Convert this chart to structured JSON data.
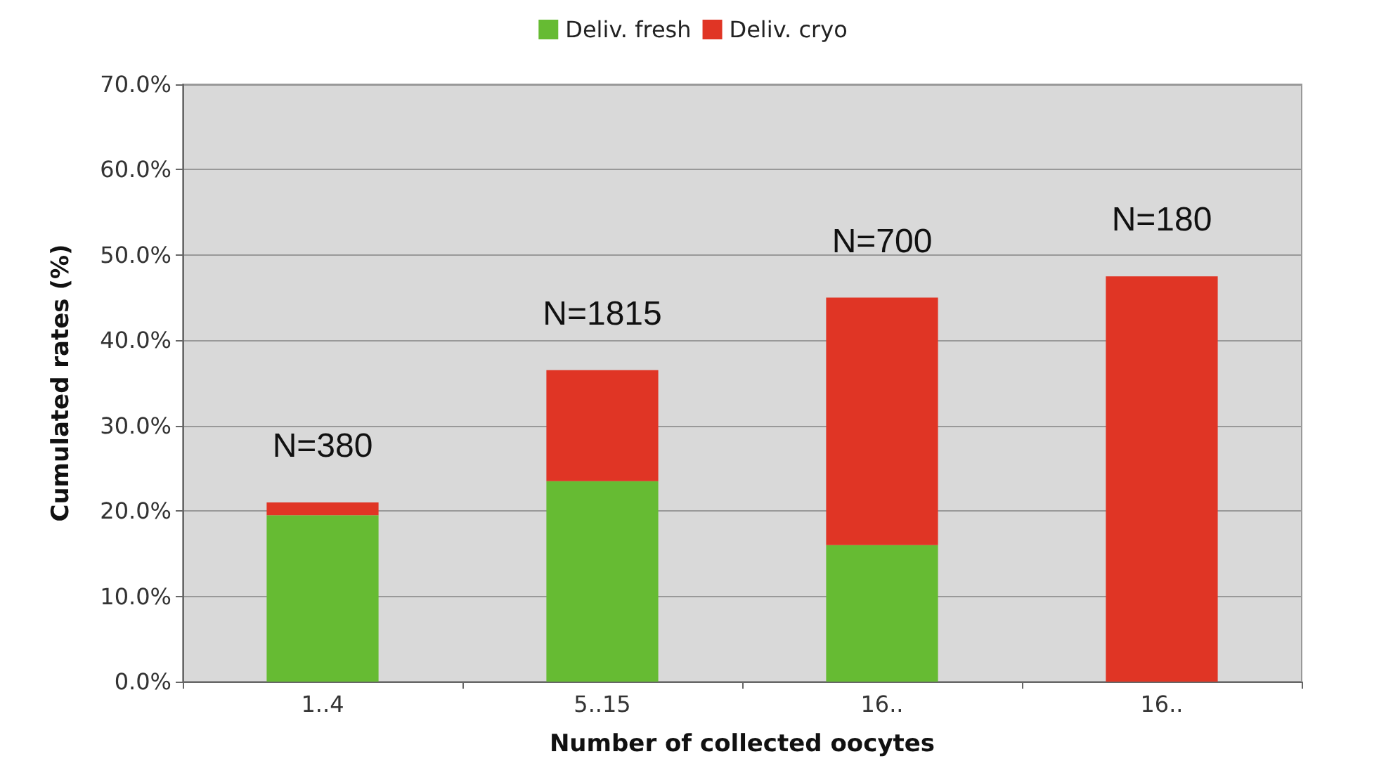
{
  "chart_data": {
    "type": "bar",
    "stacked": true,
    "xlabel": "Number of collected oocytes",
    "ylabel": "Cumulated rates (%)",
    "categories": [
      "1..4",
      "5..15",
      "16..",
      "16.."
    ],
    "series": [
      {
        "name": "Deliv. fresh",
        "color": "#66bb33",
        "values": [
          19.5,
          23.5,
          16,
          0
        ]
      },
      {
        "name": "Deliv. cryo",
        "color": "#e03525",
        "values": [
          1.5,
          13,
          29,
          47.5
        ]
      }
    ],
    "ylim": [
      0,
      70
    ],
    "yticks": [
      {
        "value": 0,
        "label": "0.0%"
      },
      {
        "value": 10,
        "label": "10.0%"
      },
      {
        "value": 20,
        "label": "20.0%"
      },
      {
        "value": 30,
        "label": "30.0%"
      },
      {
        "value": 40,
        "label": "40.0%"
      },
      {
        "value": 50,
        "label": "50.0%"
      },
      {
        "value": 60,
        "label": "60.0%"
      },
      {
        "value": 70,
        "label": "70.0%"
      }
    ],
    "annotations": [
      "N=380",
      "N=1815",
      "N=700",
      "N=180"
    ],
    "grid": "y",
    "legend": "top"
  }
}
